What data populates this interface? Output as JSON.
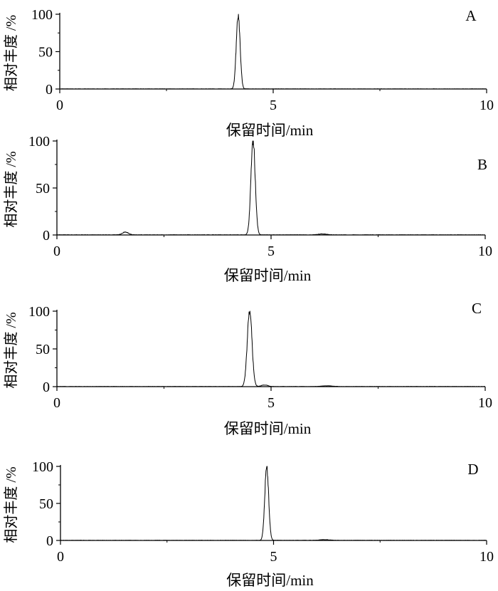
{
  "chart_data": [
    {
      "type": "line",
      "panel_label": "A",
      "xlabel": "保留时间/min",
      "ylabel": "相对丰度 /%",
      "xlim": [
        0,
        10
      ],
      "ylim": [
        0,
        100
      ],
      "x_ticks": [
        "0",
        "5",
        "10"
      ],
      "y_ticks": [
        "0",
        "50",
        "100"
      ],
      "grid": false,
      "peak": {
        "x": 4.18,
        "y": 100,
        "sigma": 0.045
      },
      "minor_peaks": [],
      "x": [
        0,
        3.9,
        4.0,
        4.05,
        4.1,
        4.13,
        4.16,
        4.18,
        4.2,
        4.23,
        4.26,
        4.3,
        4.35,
        4.45,
        4.6,
        10
      ],
      "y": [
        0,
        0,
        2,
        10,
        40,
        78,
        96,
        100,
        92,
        68,
        38,
        14,
        5,
        1,
        0,
        0
      ]
    },
    {
      "type": "line",
      "panel_label": "B",
      "xlabel": "保留时间/min",
      "ylabel": "相对丰度 /%",
      "xlim": [
        0,
        10
      ],
      "ylim": [
        0,
        100
      ],
      "x_ticks": [
        "0",
        "5",
        "10"
      ],
      "y_ticks": [
        "0",
        "50",
        "100"
      ],
      "grid": false,
      "peak": {
        "x": 4.58,
        "y": 100,
        "sigma": 0.05
      },
      "minor_peaks": [
        {
          "x": 1.6,
          "y": 3,
          "sigma": 0.07
        },
        {
          "x": 6.2,
          "y": 1,
          "sigma": 0.1
        }
      ],
      "x": [
        0,
        1.4,
        1.6,
        1.8,
        4.3,
        4.4,
        4.48,
        4.53,
        4.58,
        4.63,
        4.68,
        4.75,
        4.85,
        5.0,
        6.0,
        6.2,
        6.4,
        10
      ],
      "y": [
        0,
        0,
        3,
        0,
        0,
        3,
        25,
        80,
        100,
        82,
        45,
        15,
        3,
        1,
        0,
        1,
        0,
        0
      ]
    },
    {
      "type": "line",
      "panel_label": "C",
      "xlabel": "保留时间/min",
      "ylabel": "相对丰度 /%",
      "xlim": [
        0,
        10
      ],
      "ylim": [
        0,
        100
      ],
      "x_ticks": [
        "0",
        "5",
        "10"
      ],
      "y_ticks": [
        "0",
        "50",
        "100"
      ],
      "grid": false,
      "peak": {
        "x": 4.5,
        "y": 100,
        "sigma": 0.055
      },
      "minor_peaks": [
        {
          "x": 4.85,
          "y": 2,
          "sigma": 0.08
        },
        {
          "x": 6.3,
          "y": 1,
          "sigma": 0.12
        }
      ],
      "x": [
        0,
        4.2,
        4.32,
        4.4,
        4.45,
        4.5,
        4.55,
        4.6,
        4.68,
        4.8,
        5.0,
        6.3,
        10
      ],
      "y": [
        0,
        0,
        3,
        30,
        82,
        100,
        88,
        50,
        15,
        3,
        1,
        1,
        0
      ]
    },
    {
      "type": "line",
      "panel_label": "D",
      "xlabel": "保留时间/min",
      "ylabel": "相对丰度 /%",
      "xlim": [
        0,
        10
      ],
      "ylim": [
        0,
        100
      ],
      "x_ticks": [
        "0",
        "5",
        "10"
      ],
      "y_ticks": [
        "0",
        "50",
        "100"
      ],
      "grid": false,
      "peak": {
        "x": 4.84,
        "y": 100,
        "sigma": 0.045
      },
      "minor_peaks": [
        {
          "x": 6.2,
          "y": 1,
          "sigma": 0.12
        }
      ],
      "x": [
        0,
        4.6,
        4.7,
        4.76,
        4.8,
        4.84,
        4.88,
        4.92,
        4.98,
        5.1,
        6.2,
        10
      ],
      "y": [
        0,
        0,
        5,
        30,
        75,
        100,
        80,
        40,
        12,
        2,
        1,
        0
      ]
    }
  ]
}
